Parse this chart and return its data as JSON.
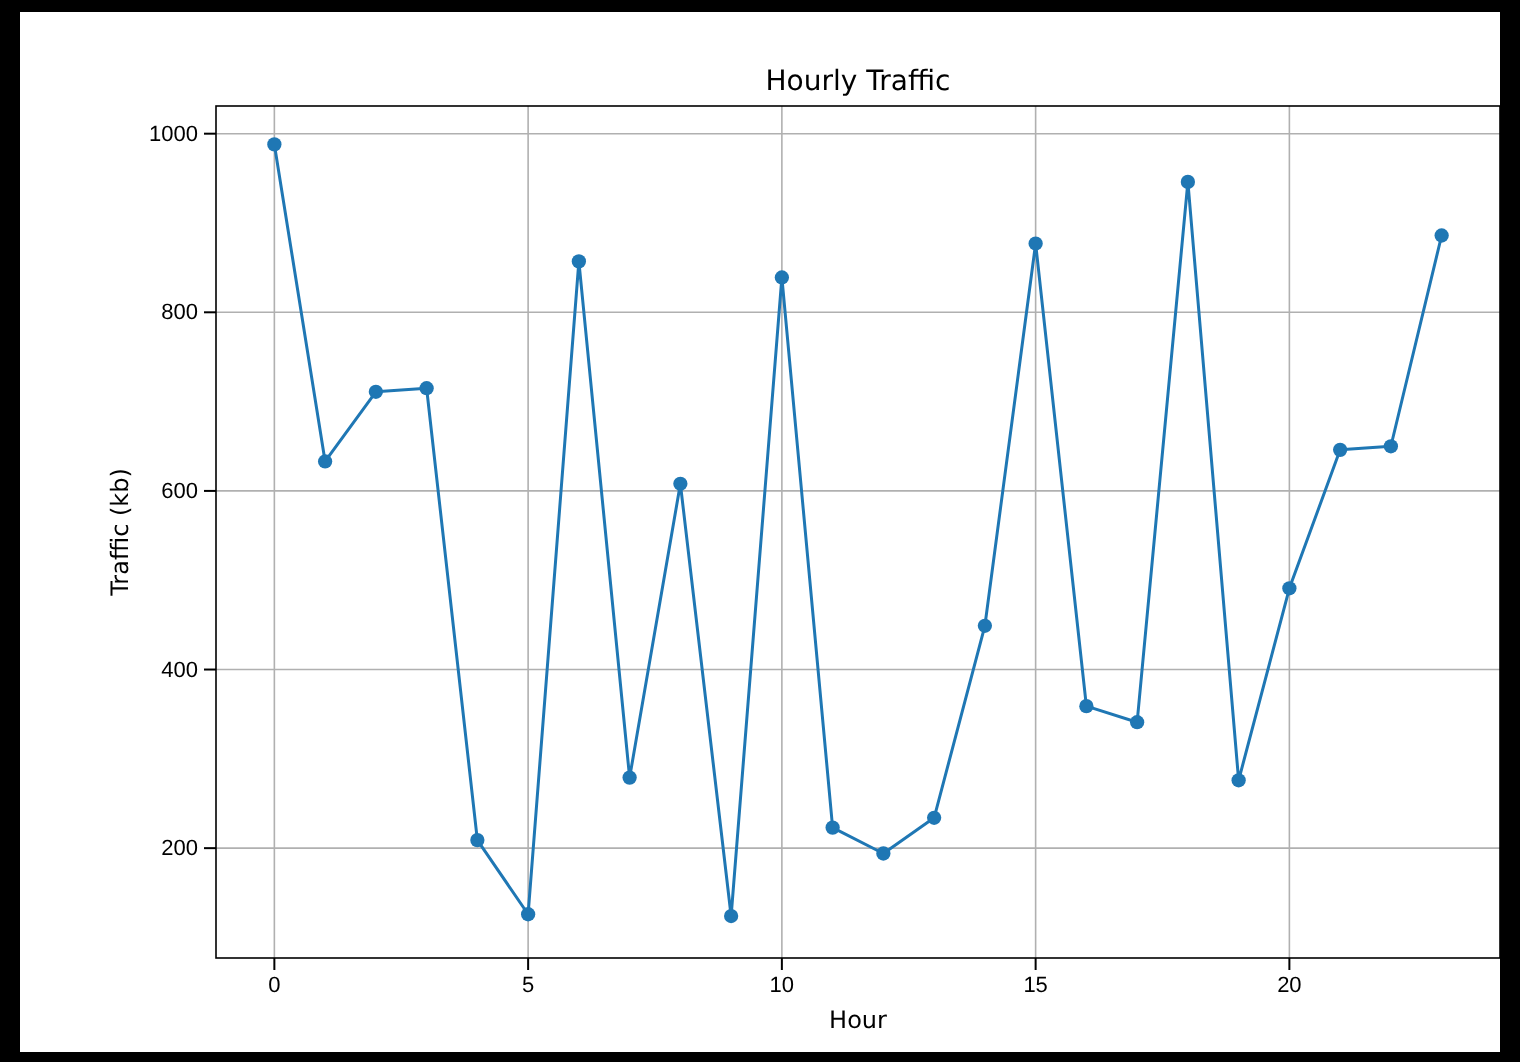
{
  "chart_data": {
    "type": "line",
    "title": "Hourly Traffic",
    "xlabel": "Hour",
    "ylabel": "Traffic (kb)",
    "x": [
      0,
      1,
      2,
      3,
      4,
      5,
      6,
      7,
      8,
      9,
      10,
      11,
      12,
      13,
      14,
      15,
      16,
      17,
      18,
      19,
      20,
      21,
      22,
      23
    ],
    "series": [
      {
        "color": "#1f77b4",
        "values": [
          988,
          633,
          711,
          715,
          209,
          126,
          857,
          279,
          608,
          124,
          839,
          223,
          194,
          234,
          449,
          877,
          359,
          341,
          946,
          276,
          491,
          646,
          650,
          886
        ]
      }
    ],
    "xlim": [
      -1.15,
      24.15
    ],
    "ylim": [
      77,
      1031
    ],
    "xticks": [
      0,
      5,
      10,
      15,
      20
    ],
    "yticks": [
      200,
      400,
      600,
      800,
      1000
    ],
    "grid": true,
    "marker": "circle",
    "line_style": "solid"
  }
}
